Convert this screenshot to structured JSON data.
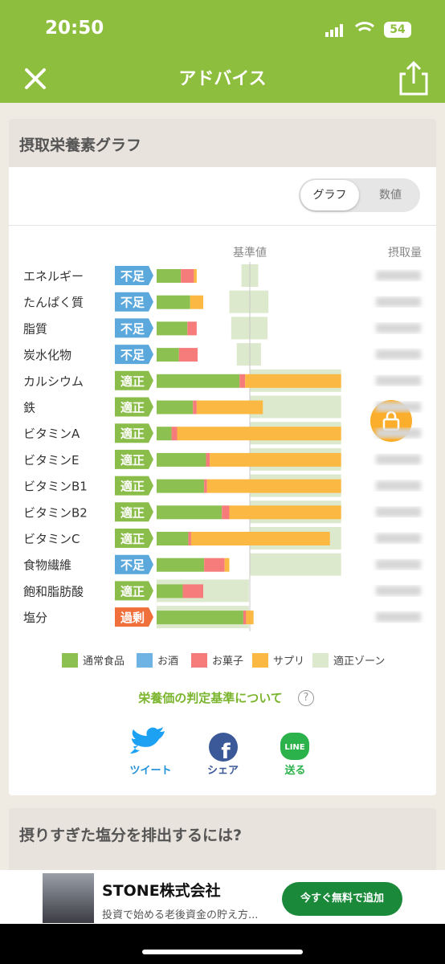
{
  "status_bar": {
    "time": "20:50",
    "battery": "54"
  },
  "nav": {
    "title": "アドバイス"
  },
  "card": {
    "title": "摂取栄養素グラフ",
    "toggle": [
      "グラフ",
      "数値"
    ]
  },
  "chart_data": {
    "type": "stacked_bar_h",
    "reference_label": "基準値",
    "value_header": "摂取量",
    "reference": 100,
    "xlim": [
      0,
      200
    ],
    "categories": [
      "エネルギー",
      "たんぱく質",
      "脂質",
      "炭水化物",
      "カルシウム",
      "鉄",
      "ビタミンA",
      "ビタミンE",
      "ビタミンB1",
      "ビタミンB2",
      "ビタミンC",
      "食物繊維",
      "飽和脂肪酸",
      "塩分"
    ],
    "statuses": [
      "不足",
      "不足",
      "不足",
      "不足",
      "適正",
      "適正",
      "適正",
      "適正",
      "適正",
      "適正",
      "適正",
      "不足",
      "適正",
      "過剰"
    ],
    "status_colors": [
      "#5ba8dc",
      "#5ba8dc",
      "#5ba8dc",
      "#5ba8dc",
      "#8bbd4a",
      "#8bbd4a",
      "#8bbd4a",
      "#8bbd4a",
      "#8bbd4a",
      "#8bbd4a",
      "#8bbd4a",
      "#5ba8dc",
      "#8bbd4a",
      "#f0703c"
    ],
    "series": [
      {
        "name": "通常食品",
        "color": "#8cc152",
        "values": [
          26,
          36,
          33,
          24,
          89,
          39,
          16,
          53,
          51,
          70,
          34,
          51,
          28,
          93
        ]
      },
      {
        "name": "お酒",
        "color": "#6fb3e4",
        "values": [
          0,
          0,
          0,
          0,
          0,
          0,
          0,
          0,
          0,
          0,
          0,
          0,
          0,
          0
        ]
      },
      {
        "name": "お菓子",
        "color": "#f67b7b",
        "values": [
          14,
          0,
          10,
          20,
          6,
          4,
          6,
          4,
          3,
          8,
          3,
          22,
          22,
          3
        ]
      },
      {
        "name": "サプリ",
        "color": "#fbb842",
        "values": [
          3,
          14,
          0,
          0,
          103,
          71,
          176,
          141,
          144,
          120,
          149,
          5,
          0,
          8
        ]
      }
    ],
    "zone": {
      "name": "適正ゾーン",
      "color": "#dde9cc",
      "ranges": [
        [
          91,
          109
        ],
        [
          78,
          120
        ],
        [
          80,
          119
        ],
        [
          86,
          112
        ],
        [
          100,
          198
        ],
        [
          100,
          198
        ],
        [
          100,
          198
        ],
        [
          100,
          198
        ],
        [
          100,
          198
        ],
        [
          100,
          198
        ],
        [
          100,
          198
        ],
        [
          100,
          198
        ],
        [
          0,
          99
        ],
        [
          0,
          99
        ]
      ]
    }
  },
  "link": "栄養価の判定基準について",
  "share": [
    "ツイート",
    "シェア",
    "送る"
  ],
  "next_card": {
    "title": "摂りすぎた塩分を排出するには?"
  },
  "ad": {
    "title": "STONE株式会社",
    "text": "投資で始める老後資金の貯え方...",
    "button": "今すぐ無料で追加"
  }
}
